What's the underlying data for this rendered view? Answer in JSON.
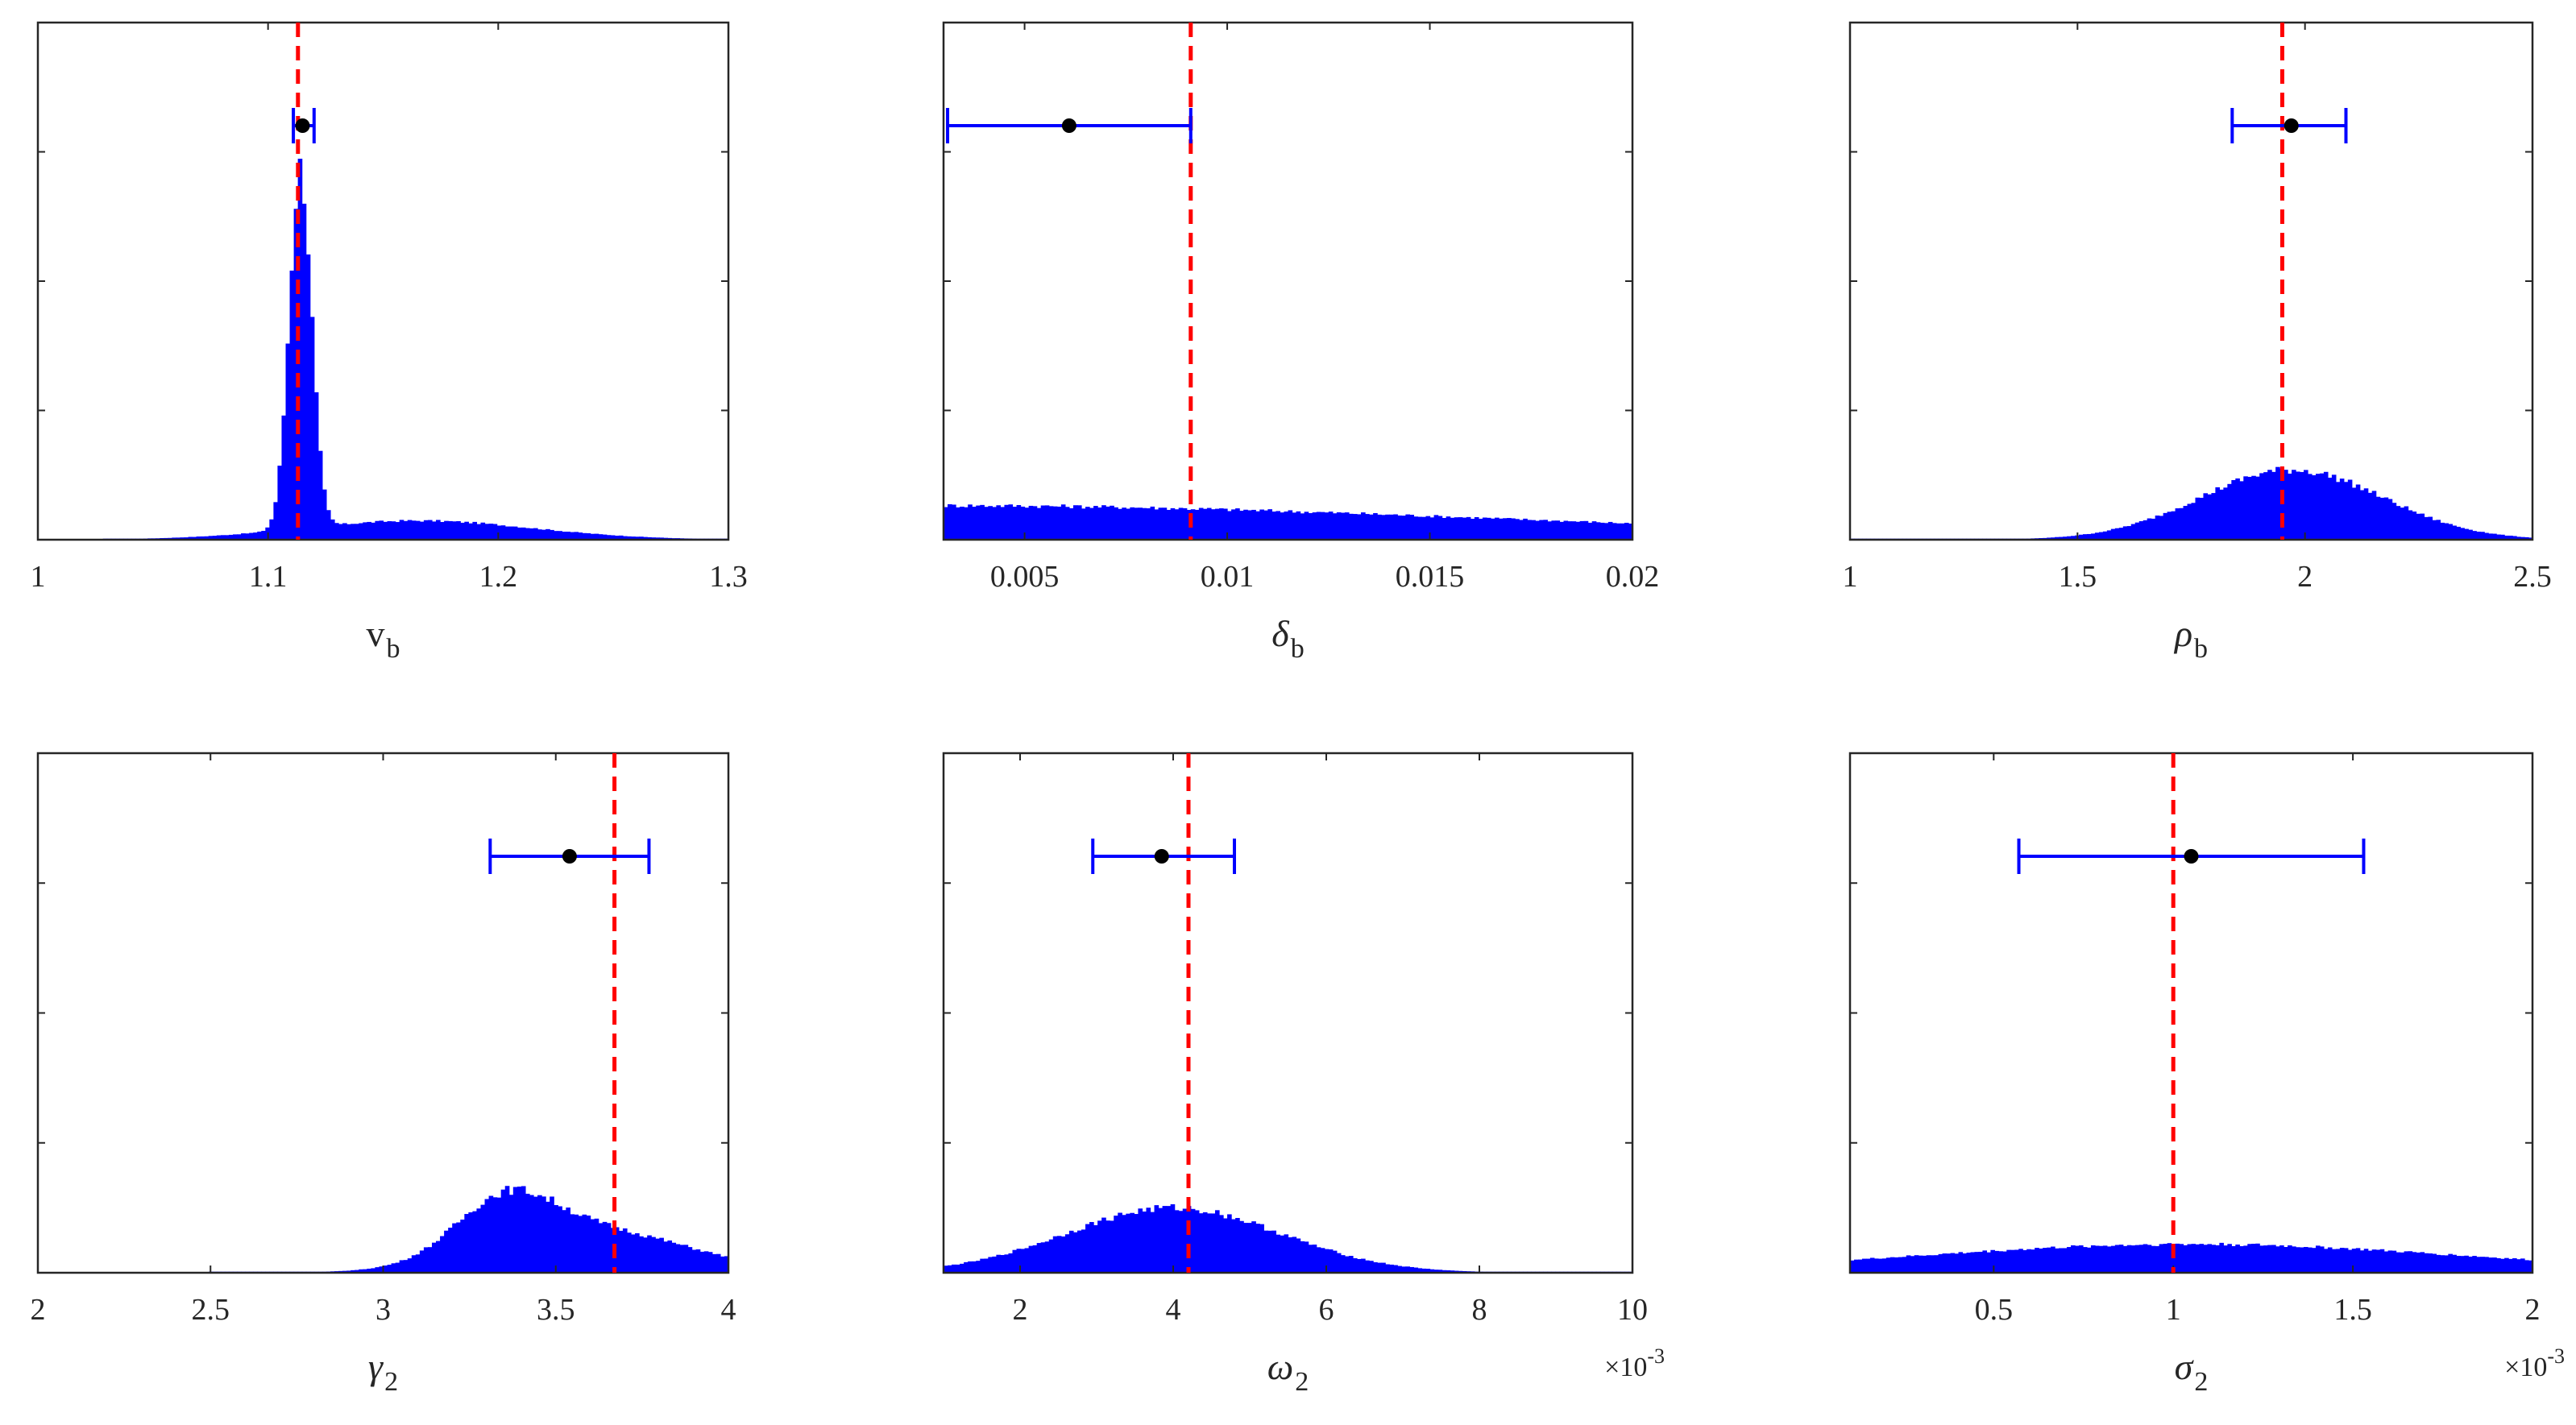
{
  "colors": {
    "histogram": "#0000ff",
    "true_value_line": "#ff0000",
    "error_bar": "#0000ff",
    "estimate_point": "#000000",
    "axes": "#262626"
  },
  "chart_data": [
    {
      "type": "histogram",
      "xlabel": {
        "base": "v",
        "sub": "b"
      },
      "xlim": [
        1,
        1.3
      ],
      "xticks": [
        1,
        1.1,
        1.2,
        1.3
      ],
      "xtick_labels": [
        "1",
        "1.1",
        "1.2",
        "1.3"
      ],
      "x_exponent": "",
      "ylim": [
        0,
        1
      ],
      "true_value": 1.113,
      "estimate": {
        "value": 1.115,
        "lower": 1.111,
        "upper": 1.12
      },
      "distribution": [
        {
          "mu": 1.114,
          "sigma": 0.0048,
          "weight": 0.95
        },
        {
          "mu": 1.165,
          "sigma": 0.05,
          "weight": 0.05
        }
      ],
      "hist_peak": 0.72,
      "hist_range": [
        1.03,
        1.3
      ]
    },
    {
      "type": "histogram",
      "xlabel": {
        "base": "δ",
        "sub": "b"
      },
      "xlim": [
        0.003,
        0.02
      ],
      "xticks": [
        0.005,
        0.01,
        0.015,
        0.02
      ],
      "xtick_labels": [
        "0.005",
        "0.01",
        "0.015",
        "0.02"
      ],
      "x_exponent": "",
      "ylim": [
        0,
        1
      ],
      "true_value": 0.0091,
      "estimate": {
        "value": 0.0061,
        "lower": 0.0031,
        "upper": 0.0091
      },
      "distribution": [
        {
          "mu": 0.003,
          "sigma": 0.014,
          "weight": 1.0
        }
      ],
      "hist_peak": 0.066,
      "hist_range": [
        0.003,
        0.02
      ]
    },
    {
      "type": "histogram",
      "xlabel": {
        "base": "ρ",
        "sub": "b"
      },
      "xlim": [
        1,
        2.5
      ],
      "xticks": [
        1,
        1.5,
        2,
        2.5
      ],
      "xtick_labels": [
        "1",
        "1.5",
        "2",
        "2.5"
      ],
      "x_exponent": "",
      "ylim": [
        0,
        1
      ],
      "true_value": 1.95,
      "estimate": {
        "value": 1.97,
        "lower": 1.84,
        "upper": 2.09
      },
      "distribution": [
        {
          "mu": 1.97,
          "sigma": 0.2,
          "weight": 1.0
        }
      ],
      "hist_peak": 0.135,
      "hist_range": [
        1.0,
        2.5
      ]
    },
    {
      "type": "histogram",
      "xlabel": {
        "base": "γ",
        "sub": "2"
      },
      "xlim": [
        2,
        4
      ],
      "xticks": [
        2,
        2.5,
        3,
        3.5,
        4
      ],
      "xtick_labels": [
        "2",
        "2.5",
        "3",
        "3.5",
        "4"
      ],
      "x_exponent": "",
      "ylim": [
        0,
        1
      ],
      "true_value": 3.67,
      "estimate": {
        "value": 3.54,
        "lower": 3.31,
        "upper": 3.77
      },
      "distribution": [
        {
          "mu": 3.35,
          "sigma": 0.14,
          "weight": 0.55
        },
        {
          "mu": 3.6,
          "sigma": 0.28,
          "weight": 0.45
        }
      ],
      "hist_peak": 0.16,
      "hist_range": [
        2.5,
        4
      ]
    },
    {
      "type": "histogram",
      "xlabel": {
        "base": "ω",
        "sub": "2"
      },
      "xlim": [
        1,
        10
      ],
      "xticks": [
        2,
        4,
        6,
        8,
        10
      ],
      "xtick_labels": [
        "2",
        "4",
        "6",
        "8",
        "10"
      ],
      "x_exponent": "×10-3",
      "ylim": [
        0,
        1
      ],
      "true_value": 4.2,
      "estimate": {
        "value": 3.85,
        "lower": 2.95,
        "upper": 4.8
      },
      "distribution": [
        {
          "mu": 4.0,
          "sigma": 1.4,
          "weight": 1.0
        }
      ],
      "hist_peak": 0.125,
      "hist_range": [
        1,
        10
      ]
    },
    {
      "type": "histogram",
      "xlabel": {
        "base": "σ",
        "sub": "2"
      },
      "xlim": [
        0.1,
        2
      ],
      "xticks": [
        0.5,
        1,
        1.5,
        2
      ],
      "xtick_labels": [
        "0.5",
        "1",
        "1.5",
        "2"
      ],
      "x_exponent": "×10-3",
      "ylim": [
        0,
        1
      ],
      "true_value": 1.0,
      "estimate": {
        "value": 1.05,
        "lower": 0.57,
        "upper": 1.53
      },
      "distribution": [
        {
          "mu": 1.05,
          "sigma": 0.75,
          "weight": 1.0
        }
      ],
      "hist_peak": 0.055,
      "hist_range": [
        0.1,
        2
      ]
    }
  ]
}
